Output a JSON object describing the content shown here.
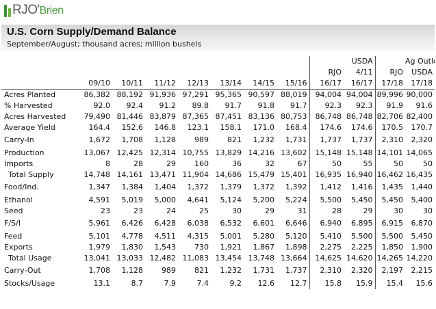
{
  "logo": {
    "text": "RJO'",
    "text2": "Brien"
  },
  "title": "U.S. Corn Supply/Demand Balance",
  "subtitle": "September/August;  thousand acres; million bushels",
  "header": {
    "row1": [
      "",
      "",
      "",
      "",
      "",
      "",
      "",
      "",
      "USDA",
      "",
      "Ag Outlook"
    ],
    "row2": [
      "",
      "",
      "",
      "",
      "",
      "",
      "",
      "RJO",
      "4/11",
      "RJO",
      "USDA"
    ],
    "row3": [
      "09/10",
      "10/11",
      "11/12",
      "12/13",
      "13/14",
      "14/15",
      "15/16",
      "16/17",
      "16/17",
      "17/18",
      "17/18"
    ]
  },
  "rows": [
    {
      "label": "Acres Planted",
      "vals": [
        "86,382",
        "88,192",
        "91,936",
        "97,291",
        "95,365",
        "90,597",
        "88,019",
        "94,004",
        "94,004",
        "89,996",
        "90,000"
      ]
    },
    {
      "label": "% Harvested",
      "vals": [
        "92.0",
        "92.4",
        "91.2",
        "89.8",
        "91.7",
        "91.8",
        "91.7",
        "92.3",
        "92.3",
        "91.9",
        "91.6"
      ]
    },
    {
      "label": "Acres Harvested",
      "vals": [
        "79,490",
        "81,446",
        "83,879",
        "87,365",
        "87,451",
        "83,136",
        "80,753",
        "86,748",
        "86,748",
        "82,706",
        "82,400"
      ]
    },
    {
      "label": "Average Yield",
      "vals": [
        "164.4",
        "152.6",
        "146.8",
        "123.1",
        "158.1",
        "171.0",
        "168.4",
        "174.6",
        "174.6",
        "170.5",
        "170.7"
      ]
    },
    {
      "label": "Carry-In",
      "vals": [
        "1,672",
        "1,708",
        "1,128",
        "989",
        "821",
        "1,232",
        "1,731",
        "1,737",
        "1,737",
        "2,310",
        "2,320"
      ]
    },
    {
      "label": "Production",
      "vals": [
        "13,067",
        "12,425",
        "12,314",
        "10,755",
        "13,829",
        "14,216",
        "13,602",
        "15,148",
        "15,148",
        "14,101",
        "14,065"
      ]
    },
    {
      "label": "Imports",
      "vals": [
        "8",
        "28",
        "29",
        "160",
        "36",
        "32",
        "67",
        "50",
        "55",
        "50",
        "50"
      ]
    },
    {
      "label": "Total Supply",
      "vals": [
        "14,748",
        "14,161",
        "13,471",
        "11,904",
        "14,686",
        "15,479",
        "15,401",
        "16,935",
        "16,940",
        "16,462",
        "16,435"
      ]
    },
    {
      "label": "Food/Ind.",
      "vals": [
        "1,347",
        "1,384",
        "1,404",
        "1,372",
        "1,379",
        "1,372",
        "1,392",
        "1,412",
        "1,416",
        "1,435",
        "1,440"
      ]
    },
    {
      "label": "Ethanol",
      "vals": [
        "4,591",
        "5,019",
        "5,000",
        "4,641",
        "5,124",
        "5,200",
        "5,224",
        "5,500",
        "5,450",
        "5,450",
        "5,400"
      ]
    },
    {
      "label": "Seed",
      "vals": [
        "23",
        "23",
        "24",
        "25",
        "30",
        "29",
        "31",
        "28",
        "29",
        "30",
        "30"
      ]
    },
    {
      "label": "F/S/I",
      "vals": [
        "5,961",
        "6,426",
        "6,428",
        "6,038",
        "6,532",
        "6,601",
        "6,646",
        "6,940",
        "6,895",
        "6,915",
        "6,870"
      ]
    },
    {
      "label": "Feed",
      "vals": [
        "5,101",
        "4,778",
        "4,511",
        "4,315",
        "5,001",
        "5,280",
        "5,120",
        "5,410",
        "5,500",
        "5,500",
        "5,450"
      ]
    },
    {
      "label": "Exports",
      "vals": [
        "1,979",
        "1,830",
        "1,543",
        "730",
        "1,921",
        "1,867",
        "1,898",
        "2,275",
        "2,225",
        "1,850",
        "1,900"
      ]
    },
    {
      "label": "Total Usage",
      "vals": [
        "13,041",
        "13,033",
        "12,482",
        "11,083",
        "13,454",
        "13,748",
        "13,664",
        "14,625",
        "14,620",
        "14,265",
        "14,220"
      ]
    },
    {
      "label": "Carry-Out",
      "vals": [
        "1,708",
        "1,128",
        "989",
        "821",
        "1,232",
        "1,731",
        "1,737",
        "2,310",
        "2,320",
        "2,197",
        "2,215"
      ]
    },
    {
      "label": "Stocks/Usage",
      "vals": [
        "13.1",
        "8.7",
        "7.9",
        "7.4",
        "9.2",
        "12.6",
        "12.7",
        "15.8",
        "15.9",
        "15.4",
        "15.6"
      ]
    }
  ]
}
